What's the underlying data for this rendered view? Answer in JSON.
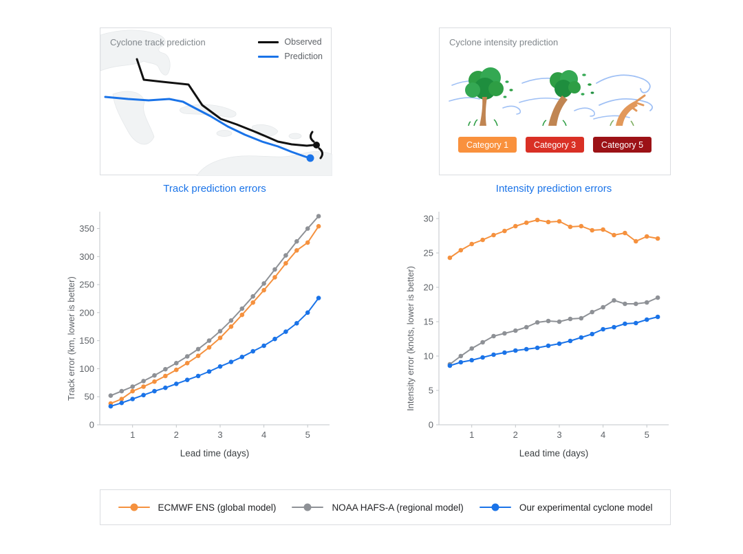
{
  "track_panel": {
    "title": "Cyclone track prediction",
    "legend": [
      {
        "label": "Observed",
        "color": "#000000"
      },
      {
        "label": "Prediction",
        "color": "#1A73E8"
      }
    ]
  },
  "intensity_panel": {
    "title": "Cyclone intensity prediction",
    "categories": [
      {
        "label": "Category 1",
        "color": "#F9913D"
      },
      {
        "label": "Category 3",
        "color": "#D93025"
      },
      {
        "label": "Category 5",
        "color": "#9C1216"
      }
    ]
  },
  "chart_data": [
    {
      "type": "line",
      "title": "Track prediction errors",
      "xlabel": "Lead time (days)",
      "ylabel": "Track error (km, lower is better)",
      "xlim": [
        0.25,
        5.5
      ],
      "ylim": [
        0,
        380
      ],
      "xticks": [
        1,
        2,
        3,
        4,
        5
      ],
      "yticks": [
        0,
        50,
        100,
        150,
        200,
        250,
        300,
        350
      ],
      "grid": false,
      "legend_position": "shared-bottom",
      "x": [
        0.5,
        0.75,
        1,
        1.25,
        1.5,
        1.75,
        2,
        2.25,
        2.5,
        2.75,
        3,
        3.25,
        3.5,
        3.75,
        4,
        4.25,
        4.5,
        4.75,
        5,
        5.25
      ],
      "series": [
        {
          "name": "ECMWF ENS (global model)",
          "color": "#F5913E",
          "values": [
            38,
            46,
            60,
            68,
            77,
            87,
            98,
            110,
            123,
            138,
            155,
            175,
            196,
            218,
            240,
            263,
            288,
            311,
            325,
            354
          ]
        },
        {
          "name": "NOAA HAFS-A (regional model)",
          "color": "#8E9196",
          "values": [
            52,
            60,
            68,
            78,
            88,
            99,
            110,
            122,
            135,
            150,
            167,
            186,
            207,
            229,
            252,
            277,
            302,
            327,
            350,
            372
          ]
        },
        {
          "name": "Our experimental cyclone model",
          "color": "#1A73E8",
          "values": [
            33,
            39,
            46,
            53,
            60,
            66,
            73,
            80,
            87,
            95,
            104,
            112,
            121,
            131,
            141,
            153,
            166,
            181,
            200,
            226
          ]
        }
      ]
    },
    {
      "type": "line",
      "title": "Intensity prediction errors",
      "xlabel": "Lead time (days)",
      "ylabel": "Intensity error (knots, lower is better)",
      "xlim": [
        0.25,
        5.5
      ],
      "ylim": [
        0,
        31
      ],
      "xticks": [
        1,
        2,
        3,
        4,
        5
      ],
      "yticks": [
        0,
        5,
        10,
        15,
        20,
        25,
        30
      ],
      "grid": false,
      "legend_position": "shared-bottom",
      "x": [
        0.5,
        0.75,
        1,
        1.25,
        1.5,
        1.75,
        2,
        2.25,
        2.5,
        2.75,
        3,
        3.25,
        3.5,
        3.75,
        4,
        4.25,
        4.5,
        4.75,
        5,
        5.25
      ],
      "series": [
        {
          "name": "ECMWF ENS (global model)",
          "color": "#F5913E",
          "values": [
            24.3,
            25.4,
            26.3,
            26.9,
            27.6,
            28.2,
            28.9,
            29.4,
            29.8,
            29.5,
            29.6,
            28.8,
            28.9,
            28.3,
            28.4,
            27.6,
            27.9,
            26.7,
            27.4,
            27.1
          ]
        },
        {
          "name": "NOAA HAFS-A (regional model)",
          "color": "#8E9196",
          "values": [
            8.8,
            10.0,
            11.1,
            12.0,
            12.9,
            13.3,
            13.7,
            14.2,
            14.9,
            15.1,
            15.0,
            15.4,
            15.5,
            16.4,
            17.1,
            18.1,
            17.6,
            17.6,
            17.8,
            18.5
          ]
        },
        {
          "name": "Our experimental cyclone model",
          "color": "#1A73E8",
          "values": [
            8.6,
            9.1,
            9.4,
            9.8,
            10.2,
            10.5,
            10.8,
            11.0,
            11.2,
            11.5,
            11.8,
            12.2,
            12.7,
            13.2,
            13.9,
            14.2,
            14.7,
            14.8,
            15.3,
            15.7
          ]
        }
      ]
    }
  ],
  "legend": {
    "items": [
      {
        "label": "ECMWF ENS (global model)",
        "color": "#F5913E"
      },
      {
        "label": "NOAA HAFS-A (regional model)",
        "color": "#8E9196"
      },
      {
        "label": "Our experimental cyclone model",
        "color": "#1A73E8"
      }
    ]
  }
}
